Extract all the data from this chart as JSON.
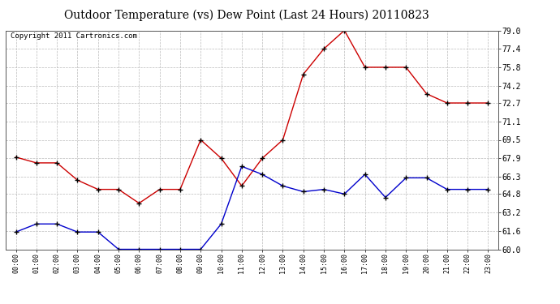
{
  "title": "Outdoor Temperature (vs) Dew Point (Last 24 Hours) 20110823",
  "copyright_text": "Copyright 2011 Cartronics.com",
  "x_labels": [
    "00:00",
    "01:00",
    "02:00",
    "03:00",
    "04:00",
    "05:00",
    "06:00",
    "07:00",
    "08:00",
    "09:00",
    "10:00",
    "11:00",
    "12:00",
    "13:00",
    "14:00",
    "15:00",
    "16:00",
    "17:00",
    "18:00",
    "19:00",
    "20:00",
    "21:00",
    "22:00",
    "23:00"
  ],
  "temp_data": [
    68.0,
    67.5,
    67.5,
    66.0,
    65.2,
    65.2,
    64.0,
    65.2,
    65.2,
    69.5,
    67.9,
    65.5,
    67.9,
    69.5,
    75.2,
    77.4,
    79.0,
    75.8,
    75.8,
    75.8,
    73.5,
    72.7,
    72.7,
    72.7
  ],
  "dew_data": [
    61.5,
    62.2,
    62.2,
    61.5,
    61.5,
    60.0,
    60.0,
    60.0,
    60.0,
    60.0,
    62.2,
    67.2,
    66.5,
    65.5,
    65.0,
    65.2,
    64.8,
    66.5,
    64.5,
    66.2,
    66.2,
    65.2,
    65.2,
    65.2
  ],
  "temp_color": "#cc0000",
  "dew_color": "#0000cc",
  "ylim_min": 60.0,
  "ylim_max": 79.0,
  "yticks": [
    60.0,
    61.6,
    63.2,
    64.8,
    66.3,
    67.9,
    69.5,
    71.1,
    72.7,
    74.2,
    75.8,
    77.4,
    79.0
  ],
  "bg_color": "#ffffff",
  "grid_color": "#bbbbbb",
  "title_fontsize": 10,
  "copyright_fontsize": 6.5,
  "tick_fontsize": 7,
  "xtick_fontsize": 6
}
